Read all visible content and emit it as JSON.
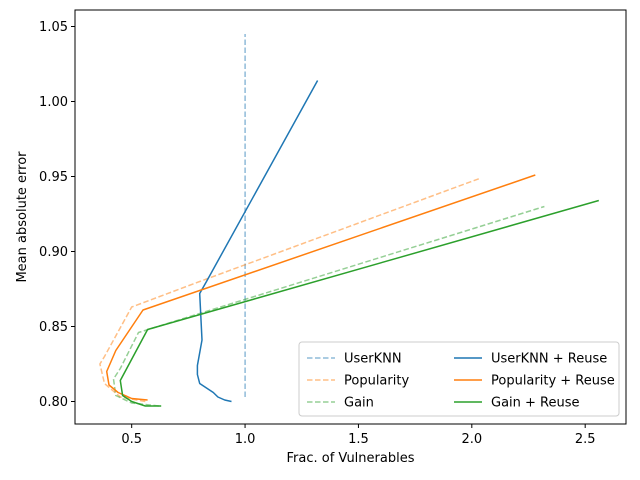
{
  "chart_data": {
    "type": "line",
    "title": "",
    "xlabel": "Frac. of Vulnerables",
    "ylabel": "Mean absolute error",
    "xlim": [
      0.25,
      2.68
    ],
    "ylim": [
      0.785,
      1.061
    ],
    "xticks": [
      0.5,
      1.0,
      1.5,
      2.0,
      2.5
    ],
    "xtick_labels": [
      "0.5",
      "1.0",
      "1.5",
      "2.0",
      "2.5"
    ],
    "yticks": [
      0.8,
      0.85,
      0.9,
      0.95,
      1.0,
      1.05
    ],
    "ytick_labels": [
      "0.80",
      "0.85",
      "0.90",
      "0.95",
      "1.00",
      "1.05"
    ],
    "grid": false,
    "legend": {
      "placement": "lower-right",
      "columns": 2
    },
    "series": [
      {
        "name": "UserKNN",
        "color": "#1f77b4",
        "style": "dashed",
        "alpha": 0.5,
        "points": [
          [
            1.0,
            0.803
          ],
          [
            1.0,
            1.045
          ]
        ]
      },
      {
        "name": "Popularity",
        "color": "#ff7f0e",
        "style": "dashed",
        "alpha": 0.5,
        "points": [
          [
            0.56,
            0.8
          ],
          [
            0.45,
            0.803
          ],
          [
            0.38,
            0.812
          ],
          [
            0.36,
            0.825
          ],
          [
            0.38,
            0.83
          ],
          [
            0.5,
            0.863
          ],
          [
            0.8,
            0.88
          ],
          [
            2.04,
            0.949
          ]
        ]
      },
      {
        "name": "Gain",
        "color": "#2ca02c",
        "style": "dashed",
        "alpha": 0.5,
        "points": [
          [
            0.62,
            0.797
          ],
          [
            0.5,
            0.799
          ],
          [
            0.43,
            0.804
          ],
          [
            0.42,
            0.815
          ],
          [
            0.45,
            0.822
          ],
          [
            0.53,
            0.846
          ],
          [
            2.32,
            0.93
          ]
        ]
      },
      {
        "name": "UserKNN + Reuse",
        "color": "#1f77b4",
        "style": "solid",
        "alpha": 1,
        "points": [
          [
            0.94,
            0.8
          ],
          [
            0.91,
            0.801
          ],
          [
            0.88,
            0.803
          ],
          [
            0.86,
            0.806
          ],
          [
            0.8,
            0.812
          ],
          [
            0.79,
            0.818
          ],
          [
            0.79,
            0.824
          ],
          [
            0.81,
            0.841
          ],
          [
            0.8,
            0.872
          ],
          [
            0.83,
            0.88
          ],
          [
            1.32,
            1.014
          ]
        ]
      },
      {
        "name": "Popularity + Reuse",
        "color": "#ff7f0e",
        "style": "solid",
        "alpha": 1,
        "points": [
          [
            0.57,
            0.801
          ],
          [
            0.5,
            0.802
          ],
          [
            0.44,
            0.806
          ],
          [
            0.4,
            0.811
          ],
          [
            0.39,
            0.82
          ],
          [
            0.43,
            0.834
          ],
          [
            0.55,
            0.861
          ],
          [
            2.28,
            0.951
          ]
        ]
      },
      {
        "name": "Gain + Reuse",
        "color": "#2ca02c",
        "style": "solid",
        "alpha": 1,
        "points": [
          [
            0.63,
            0.797
          ],
          [
            0.56,
            0.797
          ],
          [
            0.5,
            0.8
          ],
          [
            0.46,
            0.804
          ],
          [
            0.45,
            0.814
          ],
          [
            0.57,
            0.848
          ],
          [
            2.56,
            0.934
          ]
        ]
      }
    ]
  }
}
